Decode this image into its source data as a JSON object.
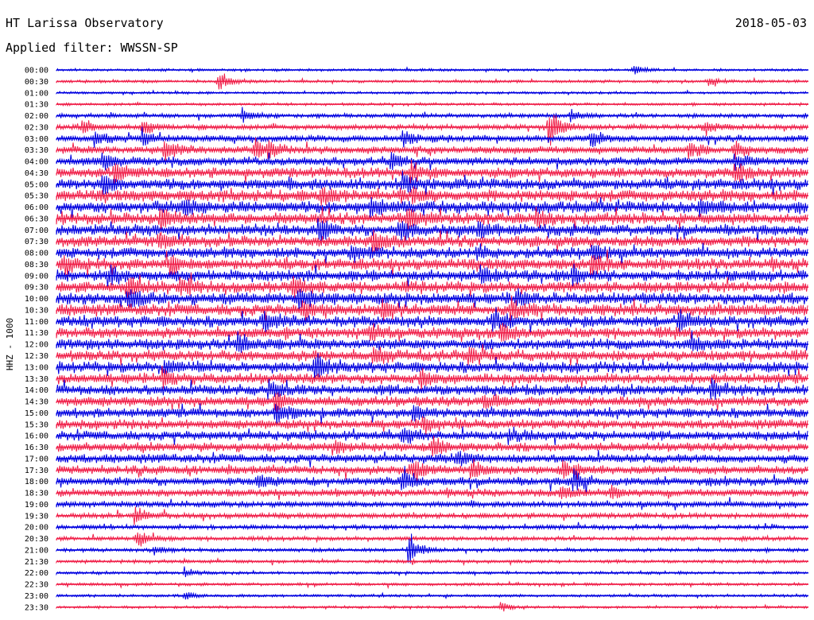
{
  "header": {
    "station": "HT Larissa Observatory",
    "date": "2018-05-03",
    "filter": "Applied filter: WWSSN-SP"
  },
  "axis": {
    "channel": "HHZ - 1000"
  },
  "colors": {
    "trace_a": "#0000e0",
    "trace_b": "#f0204a",
    "background": "#ffffff",
    "text": "#000000"
  },
  "chart_data": {
    "type": "line",
    "subtype": "helicorder",
    "title": "HT Larissa Observatory",
    "subtitle": "Applied filter: WWSSN-SP",
    "date": "2018-05-03",
    "ylabel": "HHZ - 1000",
    "line_minutes": 30,
    "row_labels": [
      "00:00",
      "00:30",
      "01:00",
      "01:30",
      "02:00",
      "02:30",
      "03:00",
      "03:30",
      "04:00",
      "04:30",
      "05:00",
      "05:30",
      "06:00",
      "06:30",
      "07:00",
      "07:30",
      "08:00",
      "08:30",
      "09:00",
      "09:30",
      "10:00",
      "10:30",
      "11:00",
      "11:30",
      "12:00",
      "12:30",
      "13:00",
      "13:30",
      "14:00",
      "14:30",
      "15:00",
      "15:30",
      "16:00",
      "16:30",
      "17:00",
      "17:30",
      "18:00",
      "18:30",
      "19:00",
      "19:30",
      "20:00",
      "20:30",
      "21:00",
      "21:30",
      "22:00",
      "22:30",
      "23:00",
      "23:30"
    ],
    "series": [
      {
        "name": "",
        "color": "#0000e0"
      },
      {
        "name": "",
        "color": "#f0204a"
      }
    ],
    "noise_level": [
      1.2,
      1.4,
      1.2,
      1.3,
      2.0,
      2.6,
      3.2,
      3.8,
      4.2,
      5.0,
      5.6,
      5.8,
      5.8,
      5.6,
      5.6,
      5.4,
      5.4,
      5.6,
      5.6,
      5.6,
      5.8,
      5.8,
      5.6,
      5.4,
      5.4,
      5.4,
      5.4,
      5.2,
      5.2,
      5.0,
      4.8,
      4.6,
      4.6,
      4.4,
      4.4,
      4.4,
      4.2,
      3.8,
      3.0,
      2.6,
      2.2,
      2.0,
      1.8,
      1.6,
      1.4,
      1.4,
      1.3,
      1.2
    ],
    "events": [
      {
        "row": 0,
        "minute": 23.0,
        "amp": 6
      },
      {
        "row": 1,
        "minute": 6.4,
        "amp": 14
      },
      {
        "row": 1,
        "minute": 26.0,
        "amp": 5
      },
      {
        "row": 4,
        "minute": 7.4,
        "amp": 9
      },
      {
        "row": 4,
        "minute": 20.5,
        "amp": 7
      },
      {
        "row": 5,
        "minute": 1.0,
        "amp": 10
      },
      {
        "row": 5,
        "minute": 3.4,
        "amp": 9
      },
      {
        "row": 5,
        "minute": 19.6,
        "amp": 22
      },
      {
        "row": 5,
        "minute": 25.8,
        "amp": 10
      },
      {
        "row": 6,
        "minute": 1.5,
        "amp": 9
      },
      {
        "row": 6,
        "minute": 3.4,
        "amp": 10
      },
      {
        "row": 6,
        "minute": 13.8,
        "amp": 10
      },
      {
        "row": 6,
        "minute": 21.3,
        "amp": 13
      },
      {
        "row": 7,
        "minute": 4.3,
        "amp": 12
      },
      {
        "row": 7,
        "minute": 7.9,
        "amp": 10
      },
      {
        "row": 7,
        "minute": 8.4,
        "amp": 10
      },
      {
        "row": 7,
        "minute": 25.2,
        "amp": 10
      },
      {
        "row": 7,
        "minute": 27.0,
        "amp": 12
      },
      {
        "row": 8,
        "minute": 1.8,
        "amp": 9
      },
      {
        "row": 8,
        "minute": 13.3,
        "amp": 9
      },
      {
        "row": 8,
        "minute": 27.0,
        "amp": 10
      },
      {
        "row": 9,
        "minute": 2.3,
        "amp": 14
      },
      {
        "row": 9,
        "minute": 14.1,
        "amp": 12
      },
      {
        "row": 9,
        "minute": 27.0,
        "amp": 11
      },
      {
        "row": 10,
        "minute": 1.8,
        "amp": 10
      },
      {
        "row": 10,
        "minute": 13.8,
        "amp": 9
      },
      {
        "row": 11,
        "minute": 10.5,
        "amp": 9
      },
      {
        "row": 11,
        "minute": 14.2,
        "amp": 8
      },
      {
        "row": 12,
        "minute": 5.0,
        "amp": 10
      },
      {
        "row": 12,
        "minute": 12.5,
        "amp": 10
      },
      {
        "row": 12,
        "minute": 25.6,
        "amp": 9
      },
      {
        "row": 13,
        "minute": 4.1,
        "amp": 14
      },
      {
        "row": 13,
        "minute": 14.0,
        "amp": 12
      },
      {
        "row": 13,
        "minute": 19.1,
        "amp": 8
      },
      {
        "row": 14,
        "minute": 10.4,
        "amp": 14
      },
      {
        "row": 14,
        "minute": 13.6,
        "amp": 12
      },
      {
        "row": 14,
        "minute": 16.8,
        "amp": 8
      },
      {
        "row": 15,
        "minute": 4.0,
        "amp": 10
      },
      {
        "row": 15,
        "minute": 12.6,
        "amp": 12
      },
      {
        "row": 16,
        "minute": 11.7,
        "amp": 10
      },
      {
        "row": 16,
        "minute": 16.7,
        "amp": 9
      },
      {
        "row": 16,
        "minute": 21.4,
        "amp": 9
      },
      {
        "row": 17,
        "minute": 0.3,
        "amp": 12
      },
      {
        "row": 17,
        "minute": 4.5,
        "amp": 12
      },
      {
        "row": 17,
        "minute": 21.3,
        "amp": 11
      },
      {
        "row": 18,
        "minute": 2.0,
        "amp": 10
      },
      {
        "row": 18,
        "minute": 16.9,
        "amp": 10
      },
      {
        "row": 18,
        "minute": 20.6,
        "amp": 11
      },
      {
        "row": 19,
        "minute": 2.8,
        "amp": 16
      },
      {
        "row": 19,
        "minute": 4.9,
        "amp": 12
      },
      {
        "row": 19,
        "minute": 9.4,
        "amp": 10
      },
      {
        "row": 20,
        "minute": 2.8,
        "amp": 14
      },
      {
        "row": 20,
        "minute": 9.6,
        "amp": 12
      },
      {
        "row": 20,
        "minute": 18.3,
        "amp": 10
      },
      {
        "row": 21,
        "minute": 9.8,
        "amp": 10
      },
      {
        "row": 21,
        "minute": 13.0,
        "amp": 10
      },
      {
        "row": 21,
        "minute": 18.1,
        "amp": 12
      },
      {
        "row": 22,
        "minute": 8.2,
        "amp": 11
      },
      {
        "row": 22,
        "minute": 17.4,
        "amp": 12
      },
      {
        "row": 22,
        "minute": 24.8,
        "amp": 12
      },
      {
        "row": 23,
        "minute": 12.5,
        "amp": 10
      },
      {
        "row": 23,
        "minute": 17.7,
        "amp": 11
      },
      {
        "row": 24,
        "minute": 7.2,
        "amp": 10
      },
      {
        "row": 24,
        "minute": 25.3,
        "amp": 10
      },
      {
        "row": 25,
        "minute": 12.6,
        "amp": 9
      },
      {
        "row": 25,
        "minute": 16.4,
        "amp": 9
      },
      {
        "row": 26,
        "minute": 10.3,
        "amp": 14
      },
      {
        "row": 26,
        "minute": 4.3,
        "amp": 9
      },
      {
        "row": 27,
        "minute": 4.2,
        "amp": 11
      },
      {
        "row": 27,
        "minute": 14.5,
        "amp": 10
      },
      {
        "row": 28,
        "minute": 8.4,
        "amp": 9
      },
      {
        "row": 28,
        "minute": 26.1,
        "amp": 12
      },
      {
        "row": 29,
        "minute": 8.7,
        "amp": 10
      },
      {
        "row": 29,
        "minute": 17.0,
        "amp": 9
      },
      {
        "row": 30,
        "minute": 8.7,
        "amp": 13
      },
      {
        "row": 30,
        "minute": 14.2,
        "amp": 9
      },
      {
        "row": 31,
        "minute": 14.6,
        "amp": 10
      },
      {
        "row": 32,
        "minute": 13.8,
        "amp": 9
      },
      {
        "row": 32,
        "minute": 18.0,
        "amp": 8
      },
      {
        "row": 33,
        "minute": 11.0,
        "amp": 8
      },
      {
        "row": 33,
        "minute": 15.0,
        "amp": 12
      },
      {
        "row": 34,
        "minute": 15.9,
        "amp": 8
      },
      {
        "row": 35,
        "minute": 14.2,
        "amp": 12
      },
      {
        "row": 35,
        "minute": 16.5,
        "amp": 11
      },
      {
        "row": 35,
        "minute": 20.2,
        "amp": 10
      },
      {
        "row": 36,
        "minute": 8.0,
        "amp": 8
      },
      {
        "row": 36,
        "minute": 13.8,
        "amp": 12
      },
      {
        "row": 36,
        "minute": 20.6,
        "amp": 14
      },
      {
        "row": 37,
        "minute": 20.1,
        "amp": 10
      },
      {
        "row": 37,
        "minute": 22.1,
        "amp": 8
      },
      {
        "row": 39,
        "minute": 3.1,
        "amp": 10
      },
      {
        "row": 41,
        "minute": 3.2,
        "amp": 12
      },
      {
        "row": 42,
        "minute": 14.0,
        "amp": 24
      },
      {
        "row": 42,
        "minute": 3.9,
        "amp": 5
      },
      {
        "row": 44,
        "minute": 5.1,
        "amp": 5
      },
      {
        "row": 46,
        "minute": 5.1,
        "amp": 5
      },
      {
        "row": 47,
        "minute": 17.7,
        "amp": 6
      }
    ]
  }
}
